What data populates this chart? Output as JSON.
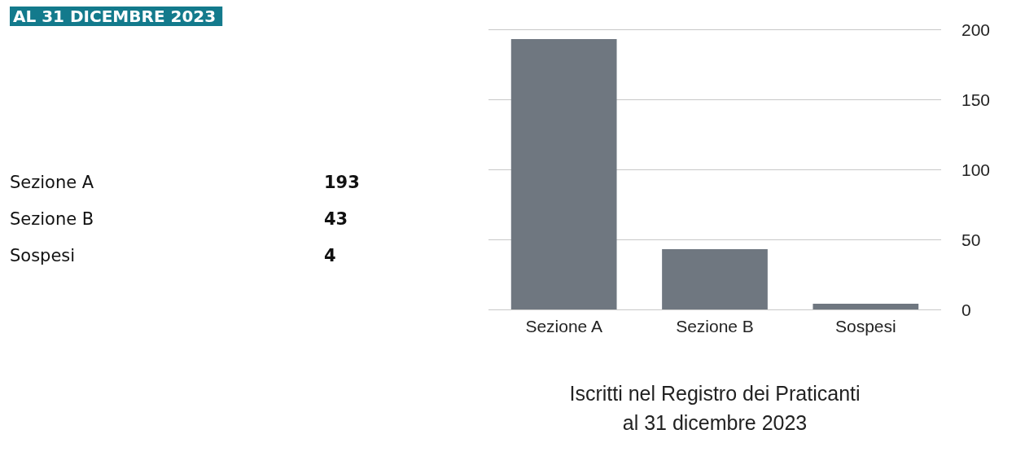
{
  "chart_data": [
    {
      "type": "other",
      "title": "AL 31 DICEMBRE 2023",
      "annotations": [
        "Sezione A",
        "193",
        "Sezione B",
        "43",
        "Sospesi",
        "4"
      ]
    },
    {
      "type": "bar",
      "xlabel": "Iscritti nel Registro dei Praticanti\nal 31 dicembre 2023",
      "categories": [
        "Sezione A",
        "Sezione B",
        "Sospesi"
      ],
      "values": [
        193,
        43,
        4
      ],
      "color": "#6f7780",
      "ylim": [
        0,
        200
      ],
      "yticks": [
        0,
        50,
        100,
        150,
        200
      ],
      "grid": "y"
    }
  ]
}
